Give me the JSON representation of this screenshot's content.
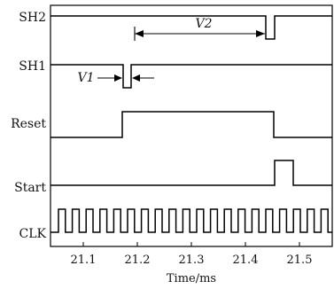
{
  "signals": [
    {
      "name": "SH2"
    },
    {
      "name": "SH1"
    },
    {
      "name": "Reset"
    },
    {
      "name": "Start"
    },
    {
      "name": "CLK"
    }
  ],
  "annotations": {
    "v1": "V1",
    "v2": "V2"
  },
  "axis": {
    "ticks": [
      "21.1",
      "21.2",
      "21.3",
      "21.4",
      "21.5"
    ],
    "title": "Time/ms"
  }
}
